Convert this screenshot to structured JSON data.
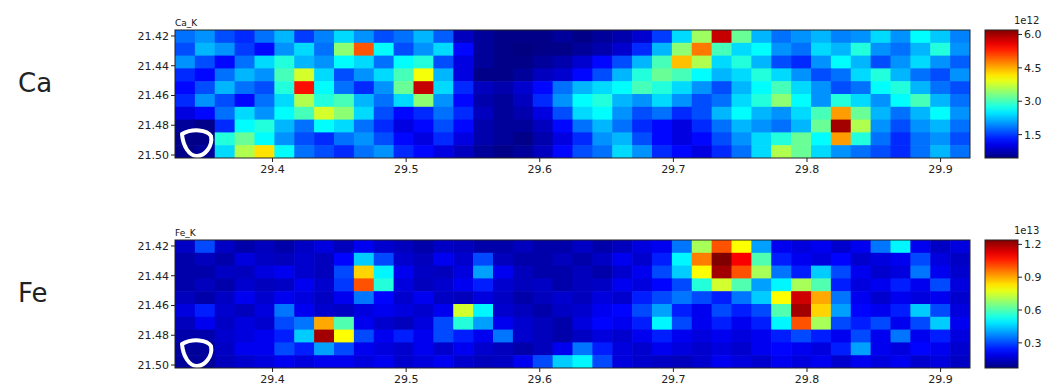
{
  "chart_data": [
    {
      "type": "heatmap",
      "label": "Ca",
      "title": "Ca_K",
      "color": "jet",
      "xlim": [
        29.327,
        29.922
      ],
      "xticks": [
        29.4,
        29.5,
        29.6,
        29.7,
        29.8,
        29.9
      ],
      "ylim": [
        21.416,
        21.502
      ],
      "yticks": [
        21.42,
        21.44,
        21.46,
        21.48,
        {
          "value": 21.5,
          "label": "21.50"
        }
      ],
      "colorbar": {
        "range": [
          0.45,
          6.2
        ],
        "ticks": [
          1.5,
          {
            "value": 3,
            "label": "3.0"
          },
          4.5,
          {
            "value": 6,
            "label": "6.0"
          }
        ],
        "scale_label": "1e12"
      },
      "cells": [
        [
          1.8,
          2.0,
          1.6,
          1.4,
          1.8,
          2.2,
          1.5,
          1.9,
          2.4,
          2.0,
          1.6,
          1.8,
          2.2,
          1.7,
          0.8,
          0.6,
          0.5,
          0.5,
          0.5,
          0.6,
          0.5,
          0.6,
          0.7,
          0.9,
          1.5,
          2.4,
          3.5,
          5.8,
          3.2,
          2.2,
          1.8,
          2.0,
          2.2,
          1.9,
          2.0,
          2.4,
          2.0,
          2.6,
          2.3,
          1.9
        ],
        [
          1.6,
          2.2,
          2.0,
          1.5,
          1.2,
          2.0,
          2.4,
          1.8,
          3.4,
          5.0,
          2.6,
          1.6,
          2.0,
          2.4,
          1.2,
          0.6,
          0.5,
          0.4,
          0.5,
          0.5,
          0.6,
          0.7,
          0.9,
          1.4,
          2.2,
          3.4,
          4.8,
          3.0,
          2.4,
          2.6,
          2.0,
          1.8,
          2.4,
          2.2,
          2.8,
          2.0,
          1.8,
          2.2,
          2.8,
          2.0
        ],
        [
          2.0,
          1.6,
          1.2,
          1.8,
          2.4,
          2.8,
          2.2,
          2.0,
          2.6,
          2.4,
          1.8,
          2.6,
          2.8,
          1.6,
          1.0,
          0.6,
          0.5,
          0.5,
          0.6,
          0.7,
          0.9,
          1.2,
          1.6,
          2.2,
          3.0,
          4.4,
          3.6,
          2.4,
          2.8,
          2.2,
          1.6,
          1.4,
          2.0,
          2.6,
          2.2,
          1.6,
          2.0,
          2.4,
          2.0,
          1.7
        ],
        [
          1.4,
          1.2,
          1.8,
          2.2,
          2.0,
          3.0,
          3.8,
          2.4,
          1.6,
          2.0,
          2.4,
          3.0,
          4.0,
          2.2,
          1.0,
          0.5,
          0.5,
          0.6,
          0.8,
          0.9,
          1.2,
          1.6,
          2.2,
          2.8,
          3.2,
          3.0,
          2.6,
          2.2,
          2.4,
          2.8,
          2.4,
          2.0,
          1.6,
          1.8,
          2.4,
          2.8,
          2.2,
          1.8,
          1.6,
          2.0
        ],
        [
          1.2,
          1.6,
          2.2,
          1.8,
          1.6,
          2.8,
          5.4,
          2.6,
          1.8,
          1.4,
          2.0,
          3.2,
          5.8,
          2.4,
          1.4,
          0.8,
          0.7,
          0.9,
          1.2,
          1.8,
          2.2,
          2.4,
          2.6,
          3.0,
          2.8,
          2.4,
          2.0,
          1.6,
          2.2,
          2.6,
          3.0,
          2.4,
          2.0,
          1.6,
          1.8,
          2.6,
          2.8,
          2.2,
          1.8,
          1.6
        ],
        [
          1.4,
          2.0,
          1.6,
          1.2,
          1.8,
          2.4,
          3.6,
          2.8,
          3.0,
          2.2,
          1.8,
          2.4,
          3.4,
          2.0,
          1.2,
          0.7,
          0.6,
          0.8,
          1.4,
          2.0,
          2.6,
          2.8,
          2.2,
          2.0,
          2.4,
          2.0,
          1.6,
          1.8,
          2.4,
          2.8,
          3.4,
          2.6,
          2.0,
          2.8,
          2.4,
          2.0,
          2.6,
          3.0,
          2.2,
          1.8
        ],
        [
          1.0,
          1.2,
          1.8,
          2.4,
          2.0,
          2.6,
          3.0,
          3.8,
          3.4,
          2.4,
          1.6,
          1.2,
          1.4,
          1.8,
          1.4,
          0.8,
          0.6,
          0.7,
          1.0,
          1.6,
          2.4,
          2.6,
          2.0,
          1.6,
          1.8,
          1.4,
          1.6,
          2.2,
          2.6,
          2.2,
          2.0,
          2.4,
          3.0,
          4.6,
          3.2,
          2.2,
          1.8,
          2.2,
          2.6,
          2.0
        ],
        [
          0.6,
          0.5,
          1.4,
          2.6,
          2.8,
          2.2,
          1.8,
          2.6,
          2.4,
          1.8,
          1.4,
          1.0,
          1.2,
          1.6,
          1.2,
          0.7,
          0.6,
          0.6,
          0.8,
          1.2,
          1.8,
          2.2,
          1.8,
          1.4,
          1.2,
          1.0,
          1.4,
          1.8,
          2.2,
          2.0,
          1.8,
          2.2,
          3.2,
          6.0,
          3.6,
          2.0,
          1.6,
          2.0,
          2.2,
          1.8
        ],
        [
          0.5,
          0.5,
          2.8,
          3.2,
          2.6,
          2.0,
          1.6,
          1.4,
          1.8,
          2.0,
          1.6,
          1.2,
          1.0,
          1.4,
          1.0,
          0.7,
          0.6,
          0.5,
          0.7,
          1.0,
          1.4,
          2.0,
          2.2,
          1.6,
          1.2,
          1.0,
          1.2,
          1.6,
          2.0,
          2.4,
          2.8,
          3.2,
          2.6,
          4.6,
          2.8,
          1.8,
          1.4,
          1.8,
          2.0,
          1.6
        ],
        [
          0.5,
          0.6,
          2.4,
          3.6,
          4.2,
          2.6,
          1.8,
          1.6,
          1.4,
          1.8,
          2.0,
          1.4,
          1.2,
          1.0,
          0.8,
          0.6,
          0.5,
          0.6,
          0.8,
          1.2,
          1.6,
          1.8,
          2.4,
          2.0,
          1.4,
          1.2,
          1.0,
          1.4,
          1.8,
          2.4,
          3.6,
          3.2,
          2.4,
          2.0,
          1.8,
          1.6,
          1.4,
          1.8,
          2.2,
          1.8
        ]
      ]
    },
    {
      "type": "heatmap",
      "label": "Fe",
      "title": "Fe_K",
      "color": "jet",
      "xlim": [
        29.327,
        29.922
      ],
      "xticks": [
        29.4,
        29.5,
        29.6,
        29.7,
        29.8,
        29.9
      ],
      "ylim": [
        21.416,
        21.502
      ],
      "yticks": [
        21.42,
        21.44,
        21.46,
        21.48,
        {
          "value": 21.5,
          "label": "21.50"
        }
      ],
      "colorbar": {
        "range": [
          0.07,
          1.24
        ],
        "ticks": [
          0.3,
          0.6,
          0.9,
          1.2
        ],
        "scale_label": "1e13"
      },
      "cells": [
        [
          0.15,
          0.3,
          0.15,
          0.12,
          0.14,
          0.12,
          0.15,
          0.18,
          0.14,
          0.2,
          0.16,
          0.14,
          0.12,
          0.15,
          0.14,
          0.12,
          0.12,
          0.14,
          0.12,
          0.12,
          0.15,
          0.12,
          0.14,
          0.18,
          0.2,
          0.35,
          0.7,
          1.0,
          0.8,
          0.4,
          0.2,
          0.18,
          0.2,
          0.16,
          0.2,
          0.35,
          0.5,
          0.2,
          0.15,
          0.18
        ],
        [
          0.12,
          0.14,
          0.12,
          0.18,
          0.15,
          0.14,
          0.16,
          0.14,
          0.22,
          0.45,
          0.3,
          0.16,
          0.14,
          0.2,
          0.16,
          0.3,
          0.14,
          0.12,
          0.12,
          0.14,
          0.12,
          0.15,
          0.2,
          0.16,
          0.25,
          0.5,
          0.95,
          1.25,
          1.1,
          0.6,
          0.25,
          0.2,
          0.18,
          0.22,
          0.16,
          0.18,
          0.2,
          0.3,
          0.18,
          0.15
        ],
        [
          0.12,
          0.12,
          0.15,
          0.14,
          0.18,
          0.2,
          0.16,
          0.14,
          0.3,
          0.85,
          0.5,
          0.2,
          0.15,
          0.14,
          0.18,
          0.4,
          0.2,
          0.14,
          0.12,
          0.12,
          0.14,
          0.12,
          0.16,
          0.2,
          0.3,
          0.45,
          0.8,
          1.2,
          1.0,
          0.7,
          0.35,
          0.25,
          0.45,
          0.3,
          0.2,
          0.16,
          0.18,
          0.35,
          0.2,
          0.16
        ],
        [
          0.12,
          0.14,
          0.12,
          0.16,
          0.14,
          0.15,
          0.2,
          0.16,
          0.28,
          1.0,
          0.55,
          0.18,
          0.14,
          0.16,
          0.2,
          0.25,
          0.16,
          0.14,
          0.15,
          0.12,
          0.14,
          0.15,
          0.2,
          0.18,
          0.22,
          0.3,
          0.55,
          0.75,
          0.6,
          0.4,
          0.5,
          0.7,
          0.6,
          0.25,
          0.18,
          0.2,
          0.25,
          0.2,
          0.3,
          0.18
        ],
        [
          0.14,
          0.12,
          0.15,
          0.2,
          0.16,
          0.2,
          0.18,
          0.15,
          0.2,
          0.35,
          0.22,
          0.16,
          0.2,
          0.15,
          0.14,
          0.18,
          0.15,
          0.12,
          0.14,
          0.16,
          0.14,
          0.18,
          0.16,
          0.25,
          0.3,
          0.35,
          0.3,
          0.25,
          0.35,
          0.45,
          0.8,
          1.15,
          0.9,
          0.35,
          0.2,
          0.16,
          0.2,
          0.18,
          0.2,
          0.16
        ],
        [
          0.18,
          0.25,
          0.16,
          0.14,
          0.18,
          0.35,
          0.2,
          0.16,
          0.15,
          0.18,
          0.2,
          0.18,
          0.16,
          0.2,
          0.75,
          0.5,
          0.16,
          0.14,
          0.12,
          0.15,
          0.16,
          0.2,
          0.22,
          0.3,
          0.4,
          0.25,
          0.2,
          0.3,
          0.25,
          0.3,
          0.6,
          1.2,
          0.85,
          0.4,
          0.22,
          0.2,
          0.25,
          0.45,
          0.3,
          0.18
        ],
        [
          0.14,
          0.2,
          0.15,
          0.18,
          0.16,
          0.3,
          0.35,
          0.9,
          0.6,
          0.2,
          0.16,
          0.14,
          0.18,
          0.3,
          0.55,
          0.4,
          0.2,
          0.16,
          0.14,
          0.12,
          0.18,
          0.22,
          0.2,
          0.25,
          0.5,
          0.3,
          0.2,
          0.25,
          0.2,
          0.25,
          0.5,
          1.0,
          0.7,
          0.3,
          0.25,
          0.3,
          0.2,
          0.3,
          0.45,
          0.2
        ],
        [
          0.12,
          0.12,
          0.16,
          0.18,
          0.2,
          0.25,
          0.45,
          1.2,
          0.8,
          0.3,
          0.2,
          0.25,
          0.2,
          0.3,
          0.25,
          0.2,
          0.35,
          0.16,
          0.14,
          0.12,
          0.15,
          0.18,
          0.16,
          0.2,
          0.25,
          0.2,
          0.18,
          0.2,
          0.18,
          0.2,
          0.25,
          0.3,
          0.25,
          0.2,
          0.3,
          0.2,
          0.35,
          0.2,
          0.25,
          0.18
        ],
        [
          0.1,
          0.1,
          0.15,
          0.2,
          0.2,
          0.3,
          0.25,
          0.4,
          0.3,
          0.2,
          0.18,
          0.16,
          0.2,
          0.16,
          0.2,
          0.16,
          0.14,
          0.12,
          0.14,
          0.2,
          0.35,
          0.25,
          0.18,
          0.16,
          0.2,
          0.18,
          0.16,
          0.18,
          0.16,
          0.2,
          0.22,
          0.2,
          0.18,
          0.25,
          0.4,
          0.2,
          0.18,
          0.22,
          0.2,
          0.16
        ],
        [
          0.1,
          0.1,
          0.14,
          0.16,
          0.18,
          0.2,
          0.18,
          0.2,
          0.2,
          0.18,
          0.2,
          0.16,
          0.18,
          0.2,
          0.16,
          0.14,
          0.15,
          0.2,
          0.3,
          0.45,
          0.5,
          0.3,
          0.18,
          0.16,
          0.15,
          0.14,
          0.16,
          0.2,
          0.18,
          0.16,
          0.2,
          0.18,
          0.2,
          0.16,
          0.2,
          0.18,
          0.2,
          0.16,
          0.18,
          0.15
        ]
      ]
    }
  ]
}
